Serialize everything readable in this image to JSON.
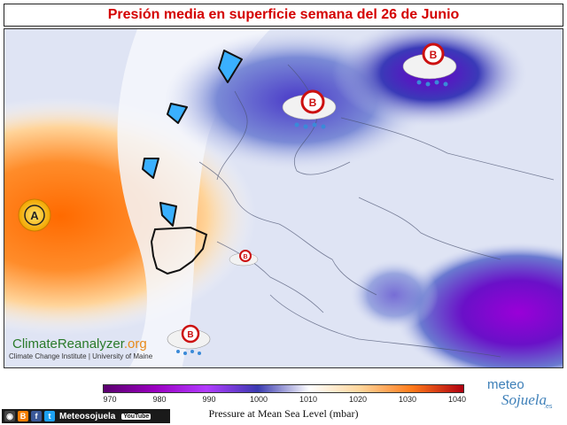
{
  "title": "Presión media en superficie semana del 26 de Junio",
  "credit": {
    "logo_main": "ClimateReanalyzer",
    "logo_suffix": ".org",
    "institution": "Climate Change Institute | University of Maine"
  },
  "pressure_systems": [
    {
      "label": "A",
      "kind": "high",
      "color": "#f4b400"
    },
    {
      "label": "B",
      "kind": "low",
      "color": "#cc1111"
    },
    {
      "label": "B",
      "kind": "low",
      "color": "#cc1111"
    },
    {
      "label": "B",
      "kind": "low",
      "color": "#cc1111"
    },
    {
      "label": "B",
      "kind": "low",
      "color": "#cc1111"
    }
  ],
  "colorbar": {
    "ticks": [
      "970",
      "980",
      "990",
      "1000",
      "1010",
      "1020",
      "1030",
      "1040"
    ],
    "label": "Pressure at Mean Sea Level (mbar)",
    "colors": [
      "#5a006e",
      "#9a00c0",
      "#b23cff",
      "#3a3ab0",
      "#ffffff",
      "#ffd59a",
      "#ff7a1a",
      "#b00010"
    ]
  },
  "brand": {
    "top": "meteo",
    "bottom": "Sojuela",
    "suffix": ".es"
  },
  "social": {
    "name": "Meteosojuela",
    "youtube": "YouTube",
    "icons": [
      "camera-icon",
      "blogger-icon",
      "facebook-icon",
      "twitter-icon"
    ]
  }
}
